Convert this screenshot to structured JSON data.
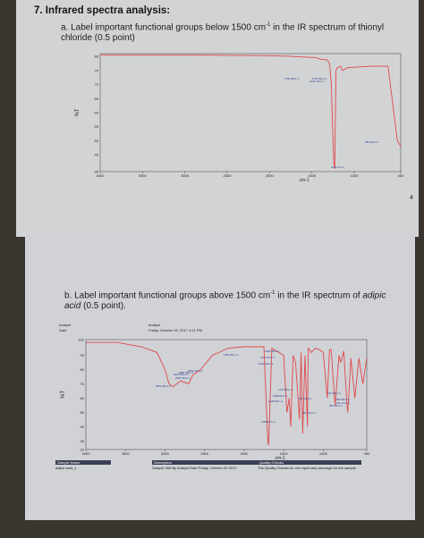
{
  "question": {
    "title": "7. Infrared spectra analysis:",
    "part_a": "a. Label important functional groups below 1500 cm",
    "part_a_sup": "-1",
    "part_a_tail": " in the IR spectrum of thionyl chloride (0.5 point)",
    "part_b": "b. Label important functional groups above 1500 cm",
    "part_b_sup": "-1",
    "part_b_mid": " in the IR spectrum of ",
    "part_b_compound": "adipic acid",
    "part_b_tail": " (0.5 point).",
    "page_number": "4"
  },
  "header_b": {
    "analyst_label": "Analyst",
    "date_label": "Date",
    "analyst_value": "Analyst",
    "date_value": "Friday, October 20, 2017 4:21 PM"
  },
  "footer_table": {
    "sample_name_label": "Sample Name",
    "sample_name_value": "adipic acid_1",
    "description_label": "Description",
    "description_value": "Sample 408 By Analyst Date Friday, October 20 2017",
    "quality_label": "Quality Checks",
    "quality_value": "The Quality Checks do not report any warnings for the sample."
  },
  "colors": {
    "spectrum": "#e0484a",
    "peak_label": "#2b3a8a",
    "paper": "#d2d3d5",
    "background": "#3b3530"
  },
  "chart_data": [
    {
      "type": "line",
      "xlabel": "cm-1",
      "ylabel": "%T",
      "x_ticks": [
        "4000",
        "3500",
        "3000",
        "2500",
        "2000",
        "1500",
        "1000",
        "450"
      ],
      "y_ticks": [
        "80",
        "75",
        "70",
        "65",
        "60",
        "55",
        "50",
        "45",
        "39"
      ],
      "xlim": [
        4000,
        450
      ],
      "ylim": [
        39,
        81
      ],
      "x": [
        4000,
        3000,
        2500,
        2100,
        1800,
        1600,
        1450,
        1400,
        1320,
        1290,
        1270,
        1255,
        1240,
        1230,
        1215,
        1200,
        1160,
        1140,
        1080,
        800,
        700,
        600,
        490,
        450
      ],
      "y": [
        80.5,
        80.5,
        80.4,
        80.3,
        80.1,
        79.8,
        79.6,
        79.0,
        78.8,
        77.5,
        70,
        55,
        42,
        40,
        75,
        76,
        76.5,
        75,
        76,
        76.5,
        76.5,
        76.5,
        50,
        48
      ],
      "peak_labels": [
        "1790.30cm-1",
        "1233.40cm-1",
        "1230.37cm-1",
        "1229.2cm-1",
        "489.36cm-1"
      ]
    },
    {
      "type": "line",
      "xlabel": "cm-1",
      "ylabel": "%T",
      "x_ticks": [
        "4000",
        "3500",
        "3000",
        "2500",
        "2000",
        "1500",
        "1000",
        "450"
      ],
      "y_ticks": [
        "101",
        "90",
        "80",
        "70",
        "60",
        "50",
        "40",
        "30",
        "24"
      ],
      "xlim": [
        4000,
        450
      ],
      "ylim": [
        24,
        101
      ],
      "x": [
        4000,
        3600,
        3300,
        3100,
        3000,
        2950,
        2900,
        2800,
        2700,
        2650,
        2550,
        2400,
        2200,
        2000,
        1750,
        1700,
        1690,
        1650,
        1500,
        1460,
        1430,
        1410,
        1380,
        1350,
        1300,
        1280,
        1260,
        1230,
        1200,
        1190,
        1150,
        1100,
        1050,
        1000,
        950,
        920,
        900,
        850,
        800,
        780,
        740,
        700,
        690,
        650,
        600,
        550,
        500,
        450
      ],
      "y": [
        99,
        99,
        96,
        92,
        80,
        70,
        68,
        72,
        70,
        76,
        80,
        90,
        95,
        96,
        96,
        30,
        27,
        95,
        90,
        50,
        60,
        40,
        90,
        85,
        45,
        92,
        35,
        90,
        40,
        95,
        92,
        95,
        94,
        92,
        60,
        94,
        94,
        55,
        90,
        85,
        93,
        55,
        50,
        88,
        60,
        88,
        70,
        88
      ],
      "peak_labels": [
        "2918.35cm-1",
        "2860.33cm-1",
        "2951.44cm-1",
        "2943.44cm-1",
        "3025.45cm-1",
        "1681.39cm-1",
        "1460.39cm-1",
        "1427.01cm-1",
        "1410.33cm-1",
        "1276.33cm-1",
        "1258.83cm-1",
        "1229.65cm-1",
        "1189.43cm-1",
        "932.11cm-1",
        "897.14cm-1",
        "732.48cm-1",
        "684.36cm-1",
        "641.17cm-1",
        "556.55cm-1"
      ]
    }
  ]
}
